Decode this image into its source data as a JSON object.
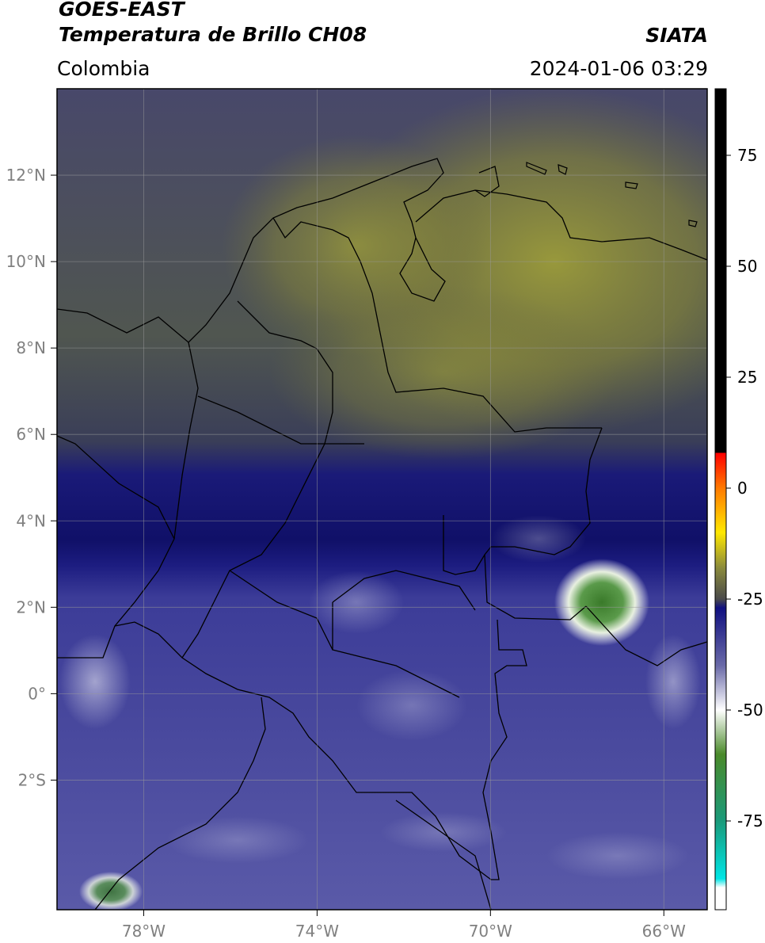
{
  "header": {
    "satellite": "GOES-EAST",
    "product": "Temperatura de Brillo CH08",
    "org": "SIATA",
    "region": "Colombia",
    "datetime": "2024-01-06 03:29"
  },
  "map": {
    "extent": {
      "lon_min": -80.0,
      "lon_max": -65.0,
      "lat_min": -5.0,
      "lat_max": 14.0
    },
    "lon_ticks": [
      {
        "value": -78,
        "label": "78°W"
      },
      {
        "value": -74,
        "label": "74°W"
      },
      {
        "value": -70,
        "label": "70°W"
      },
      {
        "value": -66,
        "label": "66°W"
      }
    ],
    "lat_ticks": [
      {
        "value": 12,
        "label": "12°N"
      },
      {
        "value": 10,
        "label": "10°N"
      },
      {
        "value": 8,
        "label": "8°N"
      },
      {
        "value": 6,
        "label": "6°N"
      },
      {
        "value": 4,
        "label": "4°N"
      },
      {
        "value": 2,
        "label": "2°N"
      },
      {
        "value": 0,
        "label": "0°"
      },
      {
        "value": -2,
        "label": "2°S"
      }
    ],
    "grid": true
  },
  "colorbar": {
    "range": [
      -95,
      90
    ],
    "ticks": [
      {
        "value": 75,
        "label": "75"
      },
      {
        "value": 50,
        "label": "50"
      },
      {
        "value": 25,
        "label": "25"
      },
      {
        "value": 0,
        "label": "0"
      },
      {
        "value": -25,
        "label": "-25"
      },
      {
        "value": -50,
        "label": "-50"
      },
      {
        "value": -75,
        "label": "-75"
      }
    ],
    "stops": [
      {
        "value": 90,
        "color": "#000000"
      },
      {
        "value": 8,
        "color": "#000000"
      },
      {
        "value": 7.9,
        "color": "#ff0000"
      },
      {
        "value": 0,
        "color": "#ff7a00"
      },
      {
        "value": -10,
        "color": "#ffe800"
      },
      {
        "value": -18,
        "color": "#8a8a3c"
      },
      {
        "value": -25,
        "color": "#4a4a4a"
      },
      {
        "value": -27,
        "color": "#101080"
      },
      {
        "value": -40,
        "color": "#6a6aa8"
      },
      {
        "value": -50,
        "color": "#ffffff"
      },
      {
        "value": -60,
        "color": "#4a8a2a"
      },
      {
        "value": -75,
        "color": "#1a9a7a"
      },
      {
        "value": -88,
        "color": "#00e5e5"
      },
      {
        "value": -90,
        "color": "#ffffff"
      },
      {
        "value": -95,
        "color": "#ffffff"
      }
    ]
  }
}
